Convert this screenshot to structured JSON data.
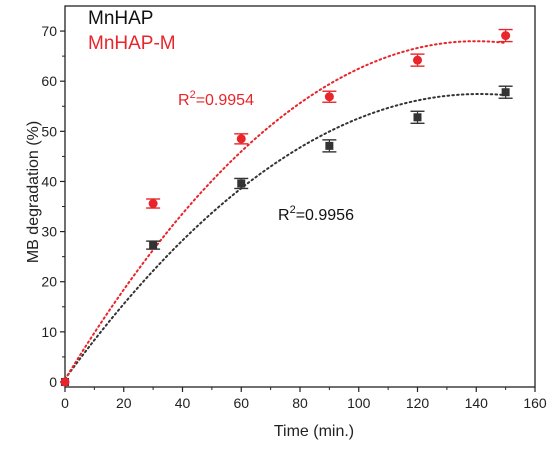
{
  "chart_data": {
    "type": "scatter",
    "xlabel": "Time (min.)",
    "ylabel": "MB degradation (%)",
    "xlim": [
      0,
      160
    ],
    "ylim": [
      -1,
      75
    ],
    "x_ticks": [
      0,
      20,
      40,
      60,
      80,
      100,
      120,
      140,
      160
    ],
    "y_ticks": [
      0,
      10,
      20,
      30,
      40,
      50,
      60,
      70
    ],
    "grid": false,
    "legend_position": "top-left",
    "series": [
      {
        "name": "MnHAP",
        "color": "#333333",
        "marker": "square",
        "x": [
          0,
          30,
          60,
          90,
          120,
          150
        ],
        "y": [
          0,
          27.3,
          39.6,
          47.1,
          52.8,
          57.8
        ],
        "error": [
          0,
          0.8,
          1.0,
          1.2,
          1.2,
          1.2
        ],
        "fit": {
          "type": "polynomial",
          "coefficients": [
            0.6,
            0.805,
            -0.00285
          ],
          "r2_label": "R",
          "r2_sup": "2",
          "r2_value": "=0.9956"
        }
      },
      {
        "name": "MnHAP-M",
        "color": "#e8252b",
        "marker": "circle",
        "x": [
          0,
          30,
          60,
          90,
          120,
          150
        ],
        "y": [
          0,
          35.6,
          48.5,
          56.9,
          64.2,
          69.1
        ],
        "error": [
          0,
          0.9,
          1.0,
          1.1,
          1.2,
          1.2
        ],
        "fit": {
          "type": "polynomial",
          "coefficients": [
            0.5,
            0.965,
            -0.00345
          ],
          "r2_label": "R",
          "r2_sup": "2",
          "r2_value": "=0.9954"
        }
      }
    ]
  }
}
